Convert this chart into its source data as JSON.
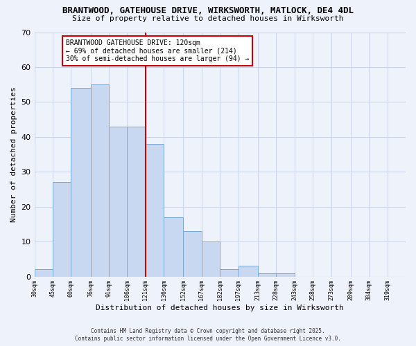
{
  "title1": "BRANTWOOD, GATEHOUSE DRIVE, WIRKSWORTH, MATLOCK, DE4 4DL",
  "title2": "Size of property relative to detached houses in Wirksworth",
  "xlabel": "Distribution of detached houses by size in Wirksworth",
  "ylabel": "Number of detached properties",
  "bar_edges": [
    30,
    45,
    60,
    76,
    91,
    106,
    121,
    136,
    152,
    167,
    182,
    197,
    213,
    228,
    243,
    258,
    273,
    289,
    304,
    319,
    334
  ],
  "bar_heights": [
    2,
    27,
    54,
    55,
    43,
    43,
    38,
    17,
    13,
    10,
    2,
    3,
    1,
    1,
    0,
    0,
    0,
    0,
    0,
    0
  ],
  "bar_color": "#c8d8f0",
  "bar_edge_color": "#7aa8d8",
  "vline_x": 121,
  "vline_color": "#cc0000",
  "annotation_line1": "BRANTWOOD GATEHOUSE DRIVE: 120sqm",
  "annotation_line2": "← 69% of detached houses are smaller (214)",
  "annotation_line3": "30% of semi-detached houses are larger (94) →",
  "annotation_box_color": "#cc0000",
  "annotation_bg": "#ffffff",
  "ylim": [
    0,
    70
  ],
  "yticks": [
    0,
    10,
    20,
    30,
    40,
    50,
    60,
    70
  ],
  "grid_color": "#c8d8f0",
  "footnote1": "Contains HM Land Registry data © Crown copyright and database right 2025.",
  "footnote2": "Contains public sector information licensed under the Open Government Licence v3.0.",
  "bg_color": "#eef2fb",
  "title1_fontsize": 9,
  "title2_fontsize": 8,
  "xlabel_fontsize": 8,
  "ylabel_fontsize": 8,
  "xtick_fontsize": 6,
  "ytick_fontsize": 8,
  "annot_fontsize": 7
}
